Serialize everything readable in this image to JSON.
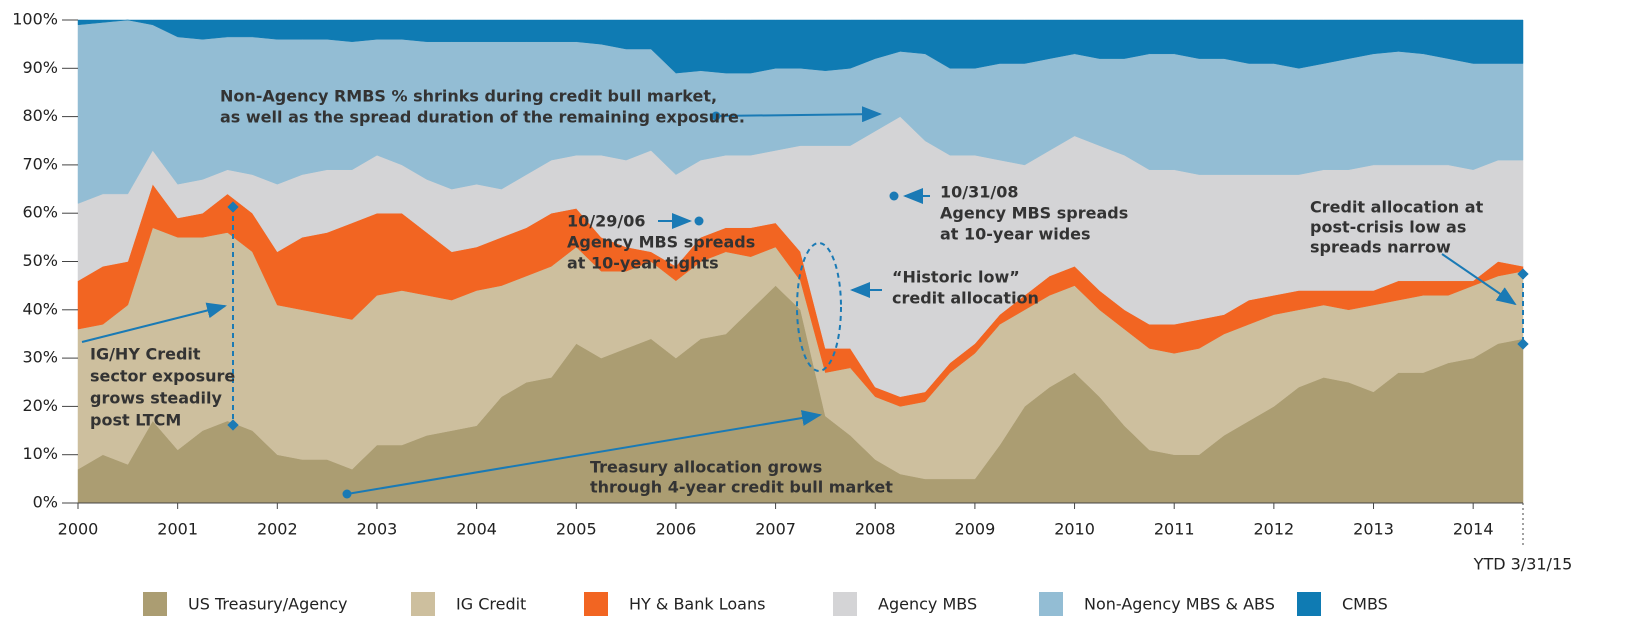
{
  "chart_data": {
    "type": "stacked-area",
    "x": [
      2000,
      2000.25,
      2000.5,
      2000.75,
      2001,
      2001.25,
      2001.5,
      2001.75,
      2002,
      2002.25,
      2002.5,
      2002.75,
      2003,
      2003.25,
      2003.5,
      2003.75,
      2004,
      2004.25,
      2004.5,
      2004.75,
      2005,
      2005.25,
      2005.5,
      2005.75,
      2006,
      2006.25,
      2006.5,
      2006.75,
      2007,
      2007.25,
      2007.5,
      2007.75,
      2008,
      2008.25,
      2008.5,
      2008.75,
      2009,
      2009.25,
      2009.5,
      2009.75,
      2010,
      2010.25,
      2010.5,
      2010.75,
      2011,
      2011.25,
      2011.5,
      2011.75,
      2012,
      2012.25,
      2012.5,
      2012.75,
      2013,
      2013.25,
      2013.5,
      2013.75,
      2014,
      2014.25,
      2014.5
    ],
    "series": [
      {
        "name": "US Treasury/Agency",
        "color": "#ab9d72",
        "values": [
          7,
          10,
          8,
          17,
          11,
          15,
          17,
          15,
          10,
          9,
          9,
          7,
          12,
          12,
          14,
          15,
          16,
          22,
          25,
          26,
          33,
          30,
          32,
          34,
          30,
          34,
          35,
          40,
          45,
          40,
          18,
          14,
          9,
          6,
          5,
          5,
          5,
          12,
          20,
          24,
          27,
          22,
          16,
          11,
          10,
          10,
          14,
          17,
          20,
          24,
          26,
          25,
          23,
          27,
          27,
          29,
          30,
          33,
          34
        ]
      },
      {
        "name": "IG Credit",
        "color": "#cdbf9e",
        "values": [
          29,
          27,
          33,
          40,
          44,
          40,
          39,
          37,
          31,
          31,
          30,
          31,
          31,
          32,
          29,
          27,
          28,
          23,
          22,
          23,
          20,
          18,
          16,
          16,
          16,
          16,
          17,
          11,
          8,
          6,
          9,
          14,
          13,
          14,
          16,
          22,
          26,
          25,
          20,
          19,
          18,
          18,
          20,
          21,
          21,
          22,
          21,
          20,
          19,
          16,
          15,
          15,
          18,
          15,
          16,
          14,
          15,
          14,
          14
        ]
      },
      {
        "name": "HY & Bank Loans",
        "color": "#f26522",
        "values": [
          10,
          12,
          9,
          9,
          4,
          5,
          8,
          8,
          11,
          15,
          17,
          20,
          17,
          16,
          13,
          10,
          9,
          10,
          10,
          11,
          8,
          7,
          5,
          2,
          3,
          5,
          5,
          6,
          5,
          6,
          5,
          4,
          2,
          2,
          2,
          2,
          2,
          2,
          3,
          4,
          4,
          4,
          4,
          5,
          6,
          6,
          4,
          5,
          4,
          4,
          3,
          4,
          3,
          4,
          3,
          3,
          1,
          3,
          1
        ]
      },
      {
        "name": "Agency MBS",
        "color": "#d4d4d6",
        "values": [
          16,
          15,
          14,
          7,
          7,
          7,
          5,
          8,
          14,
          13,
          13,
          11,
          12,
          10,
          11,
          13,
          13,
          10,
          11,
          11,
          11,
          17,
          18,
          21,
          19,
          16,
          15,
          15,
          15,
          22,
          42,
          42,
          53,
          58,
          52,
          43,
          39,
          32,
          27,
          26,
          27,
          30,
          32,
          32,
          32,
          30,
          29,
          26,
          25,
          24,
          25,
          25,
          26,
          24,
          24,
          24,
          23,
          21,
          22
        ]
      },
      {
        "name": "Non-Agency MBS & ABS",
        "color": "#93bdd4",
        "values": [
          37,
          35.5,
          36,
          26,
          30.5,
          29,
          27.5,
          28.5,
          30,
          28,
          27,
          26.5,
          24,
          26,
          28.5,
          30.5,
          29.5,
          30.5,
          27.5,
          24.5,
          23.5,
          23,
          23,
          21,
          21,
          18.5,
          17,
          17,
          17,
          16,
          15.5,
          16,
          15,
          13.5,
          18,
          18,
          18,
          20,
          21,
          19,
          17,
          18,
          20,
          24,
          24,
          24,
          24,
          23,
          23,
          22,
          22,
          23,
          23,
          23.5,
          23,
          22,
          22,
          20,
          20
        ]
      },
      {
        "name": "CMBS",
        "color": "#0f7bb3",
        "values": [
          1,
          0.5,
          0,
          1,
          3.5,
          4,
          3.5,
          3.5,
          4,
          4,
          4,
          4.5,
          4,
          4,
          4.5,
          4.5,
          4.5,
          4.5,
          4.5,
          4.5,
          4.5,
          5,
          6,
          6,
          11,
          10.5,
          11,
          11,
          10,
          10,
          10.5,
          10,
          8,
          6.5,
          7,
          10,
          10,
          9,
          9,
          8,
          7,
          8,
          8,
          7,
          7,
          8,
          8,
          9,
          9,
          10,
          9,
          8,
          7,
          6.5,
          7,
          8,
          9,
          9,
          9
        ]
      }
    ],
    "xlim": [
      2000,
      2014.5
    ],
    "xticks": [
      2000,
      2001,
      2002,
      2003,
      2004,
      2005,
      2006,
      2007,
      2008,
      2009,
      2010,
      2011,
      2012,
      2013,
      2014,
      {
        "value": 2014.5,
        "label": "YTD 3/31/15"
      }
    ],
    "ylim": [
      0,
      100
    ],
    "yticks": [
      {
        "value": 0,
        "label": "0%"
      },
      {
        "value": 10,
        "label": "10%"
      },
      {
        "value": 20,
        "label": "20%"
      },
      {
        "value": 30,
        "label": "30%"
      },
      {
        "value": 40,
        "label": "40%"
      },
      {
        "value": 50,
        "label": "50%"
      },
      {
        "value": 60,
        "label": "60%"
      },
      {
        "value": 70,
        "label": "70%"
      },
      {
        "value": 80,
        "label": "80%"
      },
      {
        "value": 90,
        "label": "90%"
      },
      {
        "value": 100,
        "label": "100%"
      }
    ],
    "legend": "bottom",
    "annotations": [
      {
        "lines": [
          "Non-Agency RMBS % shrinks during credit bull market,",
          "as well as the spread duration of the remaining exposure."
        ]
      },
      {
        "lines": [
          "10/29/06",
          "Agency MBS spreads",
          "at 10-year tights"
        ]
      },
      {
        "lines": [
          "10/31/08",
          "Agency MBS spreads",
          "at 10-year wides"
        ]
      },
      {
        "lines": [
          "“Historic low”",
          "credit allocation"
        ]
      },
      {
        "lines": [
          "Credit allocation at",
          "post-crisis low as",
          "spreads narrow"
        ]
      },
      {
        "lines": [
          "IG/HY Credit",
          "sector exposure",
          "grows steadily",
          "post LTCM"
        ]
      },
      {
        "lines": [
          "Treasury allocation grows",
          "through 4-year credit bull market"
        ]
      }
    ]
  }
}
